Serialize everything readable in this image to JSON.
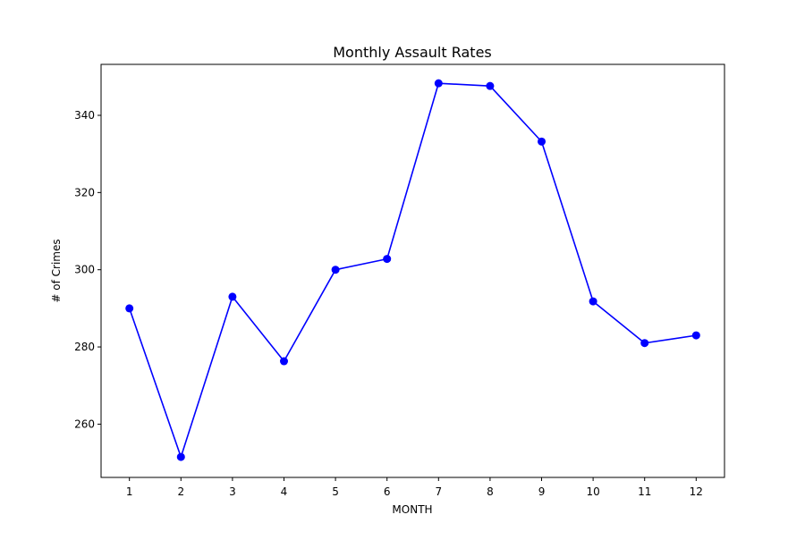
{
  "chart_data": {
    "type": "line",
    "title": "Monthly Assault Rates",
    "xlabel": "MONTH",
    "ylabel": "# of Crimes",
    "x": [
      1,
      2,
      3,
      4,
      5,
      6,
      7,
      8,
      9,
      10,
      11,
      12
    ],
    "xticks": [
      "1",
      "2",
      "3",
      "4",
      "5",
      "6",
      "7",
      "8",
      "9",
      "10",
      "11",
      "12"
    ],
    "yticks": [
      260,
      280,
      300,
      320,
      340
    ],
    "xlim": [
      0.45,
      12.55
    ],
    "ylim": [
      246.2,
      353.2
    ],
    "grid": false,
    "series": [
      {
        "values": [
          290,
          251.5,
          293,
          276.3,
          300,
          302.8,
          348.3,
          347.6,
          333.2,
          291.8,
          281,
          283
        ],
        "color": "#0000ff",
        "marker": "circle"
      }
    ]
  }
}
